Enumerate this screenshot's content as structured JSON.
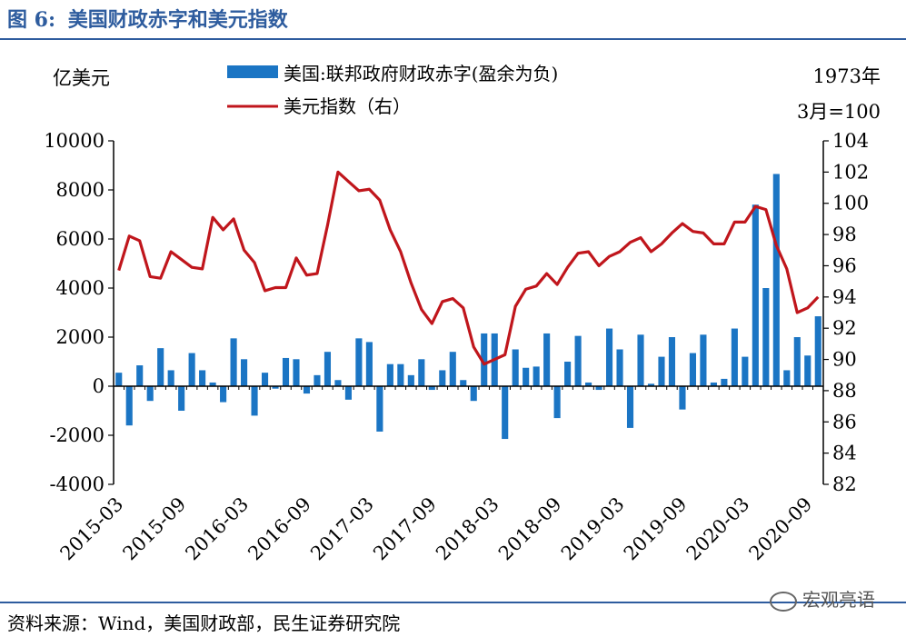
{
  "header": {
    "figure_number": "图 6:",
    "title": "美国财政赤字和美元指数"
  },
  "footer": {
    "source": "资料来源：Wind，美国财政部，民生证券研究院",
    "watermark": "宏观亮语"
  },
  "colors": {
    "accent": "#2e5c9e",
    "bar": "#1b75c4",
    "line": "#c0161c"
  },
  "chart_data": {
    "type": "bar",
    "left_axis_unit": "亿美元",
    "right_axis_unit_line1": "1973年",
    "right_axis_unit_line2": "3月=100",
    "legend": {
      "placement": "top",
      "bar_label": "美国:联邦政府财政赤字(盈余为负)",
      "line_label": "美元指数（右）"
    },
    "ylim_left": [
      -4000,
      10000
    ],
    "yticks_left": [
      "10000",
      "8000",
      "6000",
      "4000",
      "2000",
      "0",
      "-2000",
      "-4000"
    ],
    "ylim_right": [
      82,
      104
    ],
    "yticks_right": [
      "104",
      "102",
      "100",
      "98",
      "96",
      "94",
      "92",
      "90",
      "88",
      "86",
      "84",
      "82"
    ],
    "x_tick_labels": [
      "2015-03",
      "2015-09",
      "2016-03",
      "2016-09",
      "2017-03",
      "2017-09",
      "2018-03",
      "2018-09",
      "2019-03",
      "2019-09",
      "2020-03",
      "2020-09"
    ],
    "categories": [
      "2015-03",
      "2015-04",
      "2015-05",
      "2015-06",
      "2015-07",
      "2015-08",
      "2015-09",
      "2015-10",
      "2015-11",
      "2015-12",
      "2016-01",
      "2016-02",
      "2016-03",
      "2016-04",
      "2016-05",
      "2016-06",
      "2016-07",
      "2016-08",
      "2016-09",
      "2016-10",
      "2016-11",
      "2016-12",
      "2017-01",
      "2017-02",
      "2017-03",
      "2017-04",
      "2017-05",
      "2017-06",
      "2017-07",
      "2017-08",
      "2017-09",
      "2017-10",
      "2017-11",
      "2017-12",
      "2018-01",
      "2018-02",
      "2018-03",
      "2018-04",
      "2018-05",
      "2018-06",
      "2018-07",
      "2018-08",
      "2018-09",
      "2018-10",
      "2018-11",
      "2018-12",
      "2019-01",
      "2019-02",
      "2019-03",
      "2019-04",
      "2019-05",
      "2019-06",
      "2019-07",
      "2019-08",
      "2019-09",
      "2019-10",
      "2019-11",
      "2019-12",
      "2020-01",
      "2020-02",
      "2020-03",
      "2020-04",
      "2020-05",
      "2020-06",
      "2020-07",
      "2020-08",
      "2020-09",
      "2020-10"
    ],
    "series": [
      {
        "name": "美国:联邦政府财政赤字(盈余为负)",
        "type": "bar",
        "axis": "left",
        "values": [
          550,
          -1600,
          850,
          -600,
          1550,
          650,
          -1000,
          1350,
          650,
          150,
          -650,
          1950,
          1100,
          -1200,
          550,
          -100,
          1150,
          1100,
          -300,
          450,
          1400,
          250,
          -550,
          1950,
          1800,
          -1850,
          900,
          900,
          450,
          1100,
          -150,
          650,
          1400,
          250,
          -600,
          2150,
          2150,
          -2150,
          1500,
          750,
          800,
          2150,
          -1300,
          1000,
          2050,
          150,
          -150,
          2350,
          1500,
          -1700,
          2100,
          100,
          1200,
          2000,
          -950,
          1350,
          2100,
          150,
          300,
          2350,
          1200,
          7400,
          4000,
          8650,
          650,
          2000,
          1250,
          2850
        ]
      },
      {
        "name": "美元指数（右）",
        "type": "line",
        "axis": "right",
        "values": [
          95.7,
          97.9,
          97.6,
          95.3,
          95.2,
          96.9,
          96.4,
          95.9,
          95.8,
          99.1,
          98.3,
          99.0,
          97.0,
          96.2,
          94.4,
          94.6,
          94.6,
          96.5,
          95.4,
          95.5,
          98.6,
          102.0,
          101.4,
          100.8,
          100.9,
          100.2,
          98.3,
          96.9,
          94.9,
          93.2,
          92.3,
          93.7,
          93.9,
          93.3,
          90.8,
          89.7,
          90.0,
          90.3,
          93.4,
          94.5,
          94.7,
          95.5,
          94.8,
          95.9,
          96.8,
          96.9,
          96.0,
          96.6,
          96.9,
          97.5,
          97.8,
          96.9,
          97.4,
          98.1,
          98.7,
          98.2,
          98.1,
          97.4,
          97.4,
          98.8,
          98.8,
          99.8,
          99.6,
          97.3,
          95.8,
          93.0,
          93.3,
          94.0
        ]
      }
    ],
    "grid": false
  }
}
